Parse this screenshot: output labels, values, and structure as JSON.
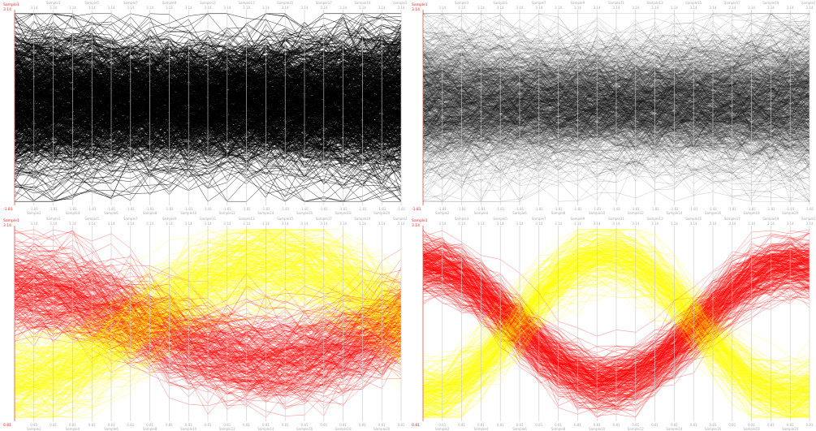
{
  "chart_data": [
    {
      "type": "parallel-coordinates",
      "panel": "top-left",
      "coloring": "black",
      "opacity": 0.9,
      "pattern": "flat",
      "first_axis_name": "Sample1",
      "axes_top": [
        "Sample1",
        "Sample3",
        "Sample5",
        "Sample7",
        "Sample9",
        "Sample11",
        "Sample13",
        "Sample15",
        "Sample17",
        "Sample19",
        "Sample21"
      ],
      "axes_bottom": [
        "Sample2",
        "Sample4",
        "Sample6",
        "Sample8",
        "Sample10",
        "Sample12",
        "Sample14",
        "Sample16",
        "Sample18",
        "Sample20"
      ],
      "max_label": "3.14",
      "min_label": "-1.81",
      "first_max": "3.14",
      "first_min": "-1.81"
    },
    {
      "type": "parallel-coordinates",
      "panel": "top-right",
      "coloring": "black",
      "opacity": 0.25,
      "pattern": "flat",
      "first_axis_name": "Sample1",
      "axes_top": [
        "Sample1",
        "Sample3",
        "Sample5",
        "Sample7",
        "Sample9",
        "Sample11",
        "Sample13",
        "Sample15",
        "Sample17",
        "Sample19",
        "Sample21"
      ],
      "axes_bottom": [
        "Sample2",
        "Sample4",
        "Sample6",
        "Sample8",
        "Sample10",
        "Sample12",
        "Sample14",
        "Sample16",
        "Sample18",
        "Sample20"
      ],
      "max_label": "3.14",
      "min_label": "-1.81",
      "first_max": "3.14",
      "first_min": "-1.81"
    },
    {
      "type": "parallel-coordinates",
      "panel": "bottom-left",
      "coloring": "yellow-red",
      "opacity": 0.55,
      "pattern": "mild-cross",
      "first_axis_name": "Sample1",
      "axes_top": [
        "Sample1",
        "Sample3",
        "Sample5",
        "Sample7",
        "Sample9",
        "Sample11",
        "Sample13",
        "Sample15",
        "Sample17",
        "Sample19",
        "Sample21"
      ],
      "axes_bottom": [
        "Sample2",
        "Sample4",
        "Sample6",
        "Sample8",
        "Sample10",
        "Sample12",
        "Sample14",
        "Sample16",
        "Sample18",
        "Sample20"
      ],
      "max_label": "3.14",
      "min_label": "0.81",
      "first_max": "3.14",
      "first_min": "0.81"
    },
    {
      "type": "parallel-coordinates",
      "panel": "bottom-right",
      "coloring": "yellow-red",
      "opacity": 0.55,
      "pattern": "strong-cross",
      "first_axis_name": "Sample1",
      "axes_top": [
        "Sample1",
        "Sample3",
        "Sample5",
        "Sample7",
        "Sample9",
        "Sample11",
        "Sample13",
        "Sample15",
        "Sample17",
        "Sample19",
        "Sample21"
      ],
      "axes_bottom": [
        "Sample2",
        "Sample4",
        "Sample6",
        "Sample8",
        "Sample10",
        "Sample12",
        "Sample14",
        "Sample16",
        "Sample18",
        "Sample20"
      ],
      "max_label": "3.14",
      "min_label": "0.81",
      "first_max": "3.14",
      "first_min": "0.81"
    }
  ],
  "colors": {
    "black": "#000000",
    "yellow": "#ffff00",
    "red": "#ff0000",
    "axis": "#c8c8c8",
    "first_axis": "#e05050",
    "label": "#aaaaaa",
    "label_red": "#ff2020"
  }
}
